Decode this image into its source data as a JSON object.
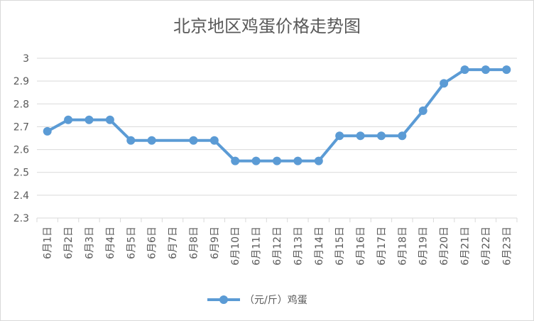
{
  "chart_data": {
    "type": "line",
    "title": "北京地区鸡蛋价格走势图",
    "categories": [
      "6月1日",
      "6月2日",
      "6月3日",
      "6月4日",
      "6月5日",
      "6月6日",
      "6月7日",
      "6月8日",
      "6月9日",
      "6月10日",
      "6月11日",
      "6月12日",
      "6月13日",
      "6月14日",
      "6月15日",
      "6月16日",
      "6月17日",
      "6月18日",
      "6月19日",
      "6月20日",
      "6月21日",
      "6月22日",
      "6月23日"
    ],
    "series": [
      {
        "name": "（元/斤）鸡蛋",
        "values": [
          2.68,
          2.73,
          2.73,
          2.73,
          2.64,
          2.64,
          null,
          2.64,
          2.64,
          2.55,
          2.55,
          2.55,
          2.55,
          2.55,
          2.66,
          2.66,
          2.66,
          2.66,
          2.77,
          2.89,
          2.95,
          2.95,
          2.95
        ]
      }
    ],
    "yticks": [
      "2.3",
      "2.4",
      "2.5",
      "2.6",
      "2.7",
      "2.8",
      "2.9",
      "3"
    ],
    "ylim": [
      2.3,
      3.0
    ],
    "xlabel": "",
    "ylabel": "",
    "grid": true,
    "legend_position": "bottom",
    "line_color": "#5b9bd5",
    "grid_color": "#d9d9d9"
  }
}
